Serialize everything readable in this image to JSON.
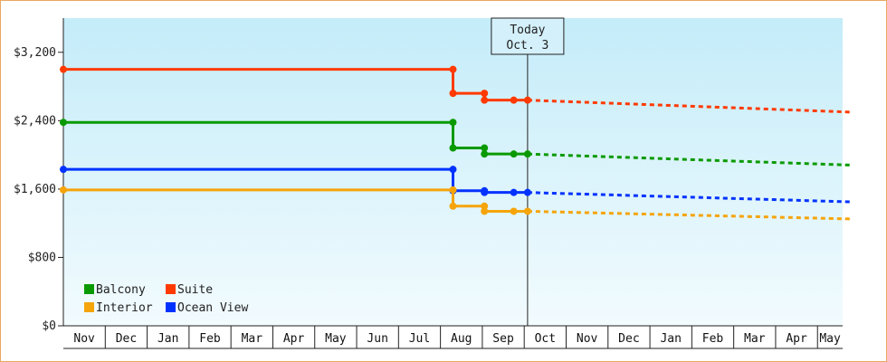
{
  "chart_data": {
    "type": "line",
    "title": "",
    "xlabel": "",
    "ylabel": "",
    "ylim": [
      0,
      3600
    ],
    "y_ticks": [
      "$0",
      "$800",
      "$1,600",
      "$2,400",
      "$3,200"
    ],
    "y_tick_values": [
      0,
      800,
      1600,
      2400,
      3200
    ],
    "months": [
      "Nov",
      "Dec",
      "Jan",
      "Feb",
      "Mar",
      "Apr",
      "May",
      "Jun",
      "Jul",
      "Aug",
      "Sep",
      "Oct",
      "Nov",
      "Dec",
      "Jan",
      "Feb",
      "Mar",
      "Apr",
      "May"
    ],
    "today": {
      "line1": "Today",
      "line2": "Oct. 3",
      "x": 11.08
    },
    "legend_placement": "bottom-left",
    "background": "light-blue-gradient",
    "series": [
      {
        "name": "Suite",
        "color": "#ff3a00",
        "points": [
          [
            0,
            3000
          ],
          [
            9.3,
            3000
          ],
          [
            9.3,
            2720
          ],
          [
            10.05,
            2720
          ],
          [
            10.05,
            2640
          ],
          [
            10.75,
            2640
          ],
          [
            11.08,
            2640
          ]
        ],
        "markers": [
          [
            0,
            3000
          ],
          [
            9.3,
            3000
          ],
          [
            9.3,
            2720
          ],
          [
            10.05,
            2720
          ],
          [
            10.05,
            2640
          ],
          [
            10.75,
            2640
          ],
          [
            11.08,
            2640
          ]
        ],
        "forecast": [
          [
            11.08,
            2640
          ],
          [
            18.8,
            2500
          ]
        ]
      },
      {
        "name": "Balcony",
        "color": "#0a9a00",
        "points": [
          [
            0,
            2380
          ],
          [
            9.3,
            2380
          ],
          [
            9.3,
            2080
          ],
          [
            10.05,
            2080
          ],
          [
            10.05,
            2010
          ],
          [
            10.75,
            2010
          ],
          [
            11.08,
            2010
          ]
        ],
        "markers": [
          [
            0,
            2380
          ],
          [
            9.3,
            2380
          ],
          [
            9.3,
            2080
          ],
          [
            10.05,
            2080
          ],
          [
            10.05,
            2010
          ],
          [
            10.75,
            2010
          ],
          [
            11.08,
            2010
          ]
        ],
        "forecast": [
          [
            11.08,
            2010
          ],
          [
            18.8,
            1880
          ]
        ]
      },
      {
        "name": "Ocean View",
        "color": "#0032ff",
        "points": [
          [
            0,
            1830
          ],
          [
            9.3,
            1830
          ],
          [
            9.3,
            1580
          ],
          [
            10.05,
            1580
          ],
          [
            10.05,
            1560
          ],
          [
            10.75,
            1560
          ],
          [
            11.08,
            1560
          ]
        ],
        "markers": [
          [
            0,
            1830
          ],
          [
            9.3,
            1830
          ],
          [
            9.3,
            1580
          ],
          [
            10.05,
            1580
          ],
          [
            10.05,
            1560
          ],
          [
            10.75,
            1560
          ],
          [
            11.08,
            1560
          ]
        ],
        "forecast": [
          [
            11.08,
            1560
          ],
          [
            18.8,
            1450
          ]
        ]
      },
      {
        "name": "Interior",
        "color": "#f5a40a",
        "points": [
          [
            0,
            1590
          ],
          [
            9.3,
            1590
          ],
          [
            9.3,
            1400
          ],
          [
            10.05,
            1400
          ],
          [
            10.05,
            1340
          ],
          [
            10.75,
            1340
          ],
          [
            11.08,
            1340
          ]
        ],
        "markers": [
          [
            0,
            1590
          ],
          [
            9.3,
            1590
          ],
          [
            9.3,
            1400
          ],
          [
            10.05,
            1400
          ],
          [
            10.05,
            1340
          ],
          [
            10.75,
            1340
          ],
          [
            11.08,
            1340
          ]
        ],
        "forecast": [
          [
            11.08,
            1340
          ],
          [
            18.8,
            1250
          ]
        ]
      }
    ],
    "legend": [
      {
        "name": "Balcony",
        "color": "#0a9a00"
      },
      {
        "name": "Suite",
        "color": "#ff3a00"
      },
      {
        "name": "Interior",
        "color": "#f5a40a"
      },
      {
        "name": "Ocean View",
        "color": "#0032ff"
      }
    ]
  }
}
